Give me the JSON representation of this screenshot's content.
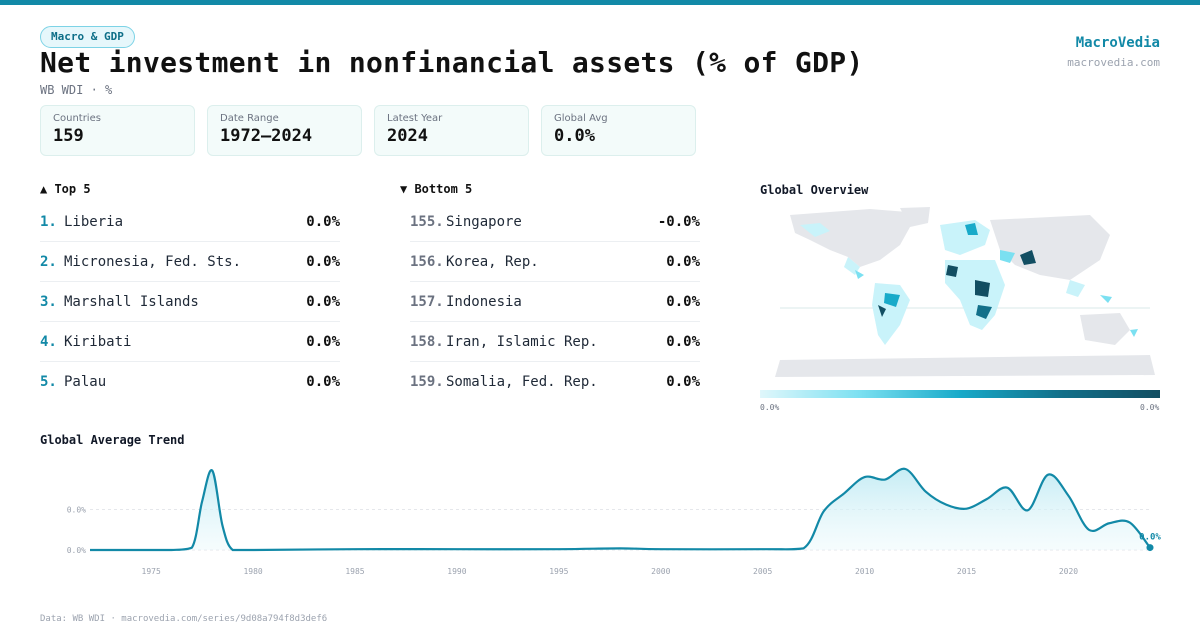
{
  "header": {
    "category": "Macro & GDP",
    "title": "Net investment in nonfinancial assets (% of GDP)",
    "subtitle": "WB WDI · %",
    "brand": "MacroVedia",
    "brand_url": "macrovedia.com"
  },
  "stats": [
    {
      "label": "Countries",
      "value": "159"
    },
    {
      "label": "Date Range",
      "value": "1972–2024"
    },
    {
      "label": "Latest Year",
      "value": "2024"
    },
    {
      "label": "Global Avg",
      "value": "0.0%"
    }
  ],
  "top5": {
    "title": "▲ Top 5",
    "items": [
      {
        "rank": "1.",
        "name": "Liberia",
        "value": "0.0%"
      },
      {
        "rank": "2.",
        "name": "Micronesia, Fed. Sts.",
        "value": "0.0%"
      },
      {
        "rank": "3.",
        "name": "Marshall Islands",
        "value": "0.0%"
      },
      {
        "rank": "4.",
        "name": "Kiribati",
        "value": "0.0%"
      },
      {
        "rank": "5.",
        "name": "Palau",
        "value": "0.0%"
      }
    ]
  },
  "bottom5": {
    "title": "▼ Bottom 5",
    "items": [
      {
        "rank": "155.",
        "name": "Singapore",
        "value": "-0.0%"
      },
      {
        "rank": "156.",
        "name": "Korea, Rep.",
        "value": "0.0%"
      },
      {
        "rank": "157.",
        "name": "Indonesia",
        "value": "0.0%"
      },
      {
        "rank": "158.",
        "name": "Iran, Islamic Rep.",
        "value": "0.0%"
      },
      {
        "rank": "159.",
        "name": "Somalia, Fed. Rep.",
        "value": "0.0%"
      }
    ]
  },
  "map": {
    "title": "Global Overview",
    "legend_min": "0.0%",
    "legend_max": "0.0%"
  },
  "footer": "Data: WB WDI · macrovedia.com/series/9d08a794f8d3def6",
  "colors": {
    "accent": "#1289a7",
    "line": "#1289a7",
    "fill": "#d4f1f7"
  },
  "chart_data": {
    "type": "area",
    "title": "Global Average Trend",
    "y_tick_labels": [
      "0.0%",
      "0.0%"
    ],
    "x_ticks": [
      1975,
      1980,
      1985,
      1990,
      1995,
      2000,
      2005,
      2010,
      2015,
      2020
    ],
    "xlim": [
      1972,
      2024
    ],
    "ylim": [
      0,
      1
    ],
    "end_label": "0.0%",
    "x": [
      1972,
      1973,
      1974,
      1975,
      1976,
      1977,
      1977.5,
      1978,
      1978.5,
      1979,
      1980,
      1985,
      1990,
      1995,
      1998,
      2000,
      2005,
      2007,
      2008,
      2009,
      2010,
      2011,
      2012,
      2013,
      2014,
      2015,
      2016,
      2017,
      2018,
      2019,
      2020,
      2021,
      2022,
      2023,
      2024
    ],
    "values": [
      0,
      0,
      0,
      0,
      0,
      0.03,
      0.6,
      0.98,
      0.3,
      0,
      0,
      0.01,
      0.01,
      0.01,
      0.02,
      0.01,
      0.01,
      0.02,
      0.48,
      0.7,
      0.9,
      0.87,
      1.0,
      0.72,
      0.56,
      0.51,
      0.63,
      0.77,
      0.49,
      0.93,
      0.67,
      0.25,
      0.33,
      0.34,
      0.03
    ]
  }
}
